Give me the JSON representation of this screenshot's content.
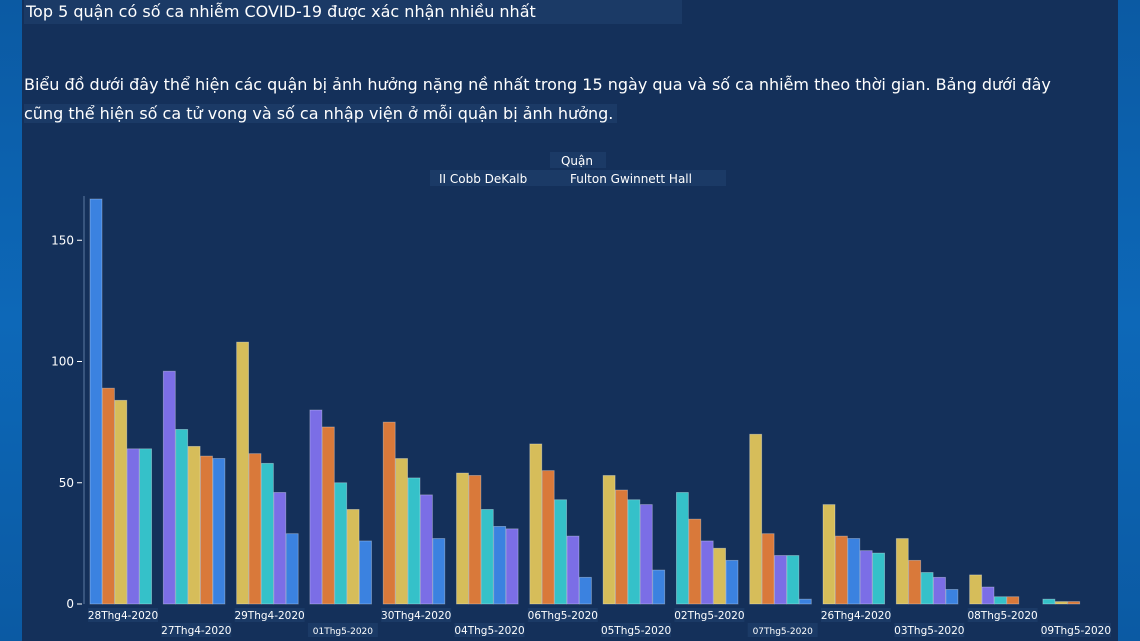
{
  "title": "Top 5 quận có số ca nhiễm COVID-19 được xác nhận nhiều nhất",
  "description": {
    "line1": "Biểu đồ dưới đây thể hiện các quận bị ảnh hưởng nặng nề nhất trong 15 ngày qua và số ca nhiễm theo thời gian. Bảng dưới đây",
    "line2": "cũng thể hiện số ca tử vong và số ca nhập viện ở mỗi quận bị ảnh hưởng."
  },
  "colors": {
    "background": "#14305a",
    "blue": "#3b82e0",
    "orange": "#d9793a",
    "gold": "#d6bd5a",
    "purple": "#7b6ee6",
    "teal": "#35c1c9",
    "axis": "#ffffff"
  },
  "chart_data": {
    "type": "bar",
    "title": "",
    "legend_title": "Quận",
    "legend_line1": "II Cobb DeKalb",
    "legend_line2": "Fulton Gwinnett Hall",
    "ylim": [
      0,
      170
    ],
    "yticks": [
      0,
      50,
      100,
      150
    ],
    "ytick_labels": [
      "0",
      "50",
      "100",
      "150"
    ],
    "categories": [
      "28Thg4-2020",
      "27Thg4-2020",
      "29Thg4-2020",
      "01Thg5-2020",
      "30Thg4-2020",
      "04Thg5-2020",
      "06Thg5-2020",
      "05Thg5-2020",
      "02Thg5-2020",
      "07Thg5-2020",
      "26Thg4-2020",
      "03Thg5-2020",
      "08Thg5-2020",
      "09Thg5-2020"
    ],
    "groups": [
      {
        "bars": [
          {
            "color": "blue",
            "value": 167
          },
          {
            "color": "orange",
            "value": 89
          },
          {
            "color": "gold",
            "value": 84
          },
          {
            "color": "purple",
            "value": 64
          },
          {
            "color": "teal",
            "value": 64
          }
        ]
      },
      {
        "bars": [
          {
            "color": "purple",
            "value": 96
          },
          {
            "color": "teal",
            "value": 72
          },
          {
            "color": "gold",
            "value": 65
          },
          {
            "color": "orange",
            "value": 61
          },
          {
            "color": "blue",
            "value": 60
          }
        ]
      },
      {
        "bars": [
          {
            "color": "gold",
            "value": 108
          },
          {
            "color": "orange",
            "value": 62
          },
          {
            "color": "teal",
            "value": 58
          },
          {
            "color": "purple",
            "value": 46
          },
          {
            "color": "blue",
            "value": 29
          }
        ]
      },
      {
        "bars": [
          {
            "color": "purple",
            "value": 80
          },
          {
            "color": "orange",
            "value": 73
          },
          {
            "color": "teal",
            "value": 50
          },
          {
            "color": "gold",
            "value": 39
          },
          {
            "color": "blue",
            "value": 26
          }
        ]
      },
      {
        "bars": [
          {
            "color": "orange",
            "value": 75
          },
          {
            "color": "gold",
            "value": 60
          },
          {
            "color": "teal",
            "value": 52
          },
          {
            "color": "purple",
            "value": 45
          },
          {
            "color": "blue",
            "value": 27
          }
        ]
      },
      {
        "bars": [
          {
            "color": "gold",
            "value": 54
          },
          {
            "color": "orange",
            "value": 53
          },
          {
            "color": "teal",
            "value": 39
          },
          {
            "color": "blue",
            "value": 32
          },
          {
            "color": "purple",
            "value": 31
          }
        ]
      },
      {
        "bars": [
          {
            "color": "gold",
            "value": 66
          },
          {
            "color": "orange",
            "value": 55
          },
          {
            "color": "teal",
            "value": 43
          },
          {
            "color": "purple",
            "value": 28
          },
          {
            "color": "blue",
            "value": 11
          }
        ]
      },
      {
        "bars": [
          {
            "color": "gold",
            "value": 53
          },
          {
            "color": "orange",
            "value": 47
          },
          {
            "color": "teal",
            "value": 43
          },
          {
            "color": "purple",
            "value": 41
          },
          {
            "color": "blue",
            "value": 14
          }
        ]
      },
      {
        "bars": [
          {
            "color": "teal",
            "value": 46
          },
          {
            "color": "orange",
            "value": 35
          },
          {
            "color": "purple",
            "value": 26
          },
          {
            "color": "gold",
            "value": 23
          },
          {
            "color": "blue",
            "value": 18
          }
        ]
      },
      {
        "bars": [
          {
            "color": "gold",
            "value": 70
          },
          {
            "color": "orange",
            "value": 29
          },
          {
            "color": "purple",
            "value": 20
          },
          {
            "color": "teal",
            "value": 20
          },
          {
            "color": "blue",
            "value": 2
          }
        ]
      },
      {
        "bars": [
          {
            "color": "gold",
            "value": 41
          },
          {
            "color": "orange",
            "value": 28
          },
          {
            "color": "blue",
            "value": 27
          },
          {
            "color": "purple",
            "value": 22
          },
          {
            "color": "teal",
            "value": 21
          }
        ]
      },
      {
        "bars": [
          {
            "color": "gold",
            "value": 27
          },
          {
            "color": "orange",
            "value": 18
          },
          {
            "color": "teal",
            "value": 13
          },
          {
            "color": "purple",
            "value": 11
          },
          {
            "color": "blue",
            "value": 6
          }
        ]
      },
      {
        "bars": [
          {
            "color": "gold",
            "value": 12
          },
          {
            "color": "purple",
            "value": 7
          },
          {
            "color": "teal",
            "value": 3
          },
          {
            "color": "orange",
            "value": 3
          }
        ]
      },
      {
        "bars": [
          {
            "color": "teal",
            "value": 2
          },
          {
            "color": "gold",
            "value": 1
          },
          {
            "color": "orange",
            "value": 1
          }
        ]
      }
    ]
  }
}
